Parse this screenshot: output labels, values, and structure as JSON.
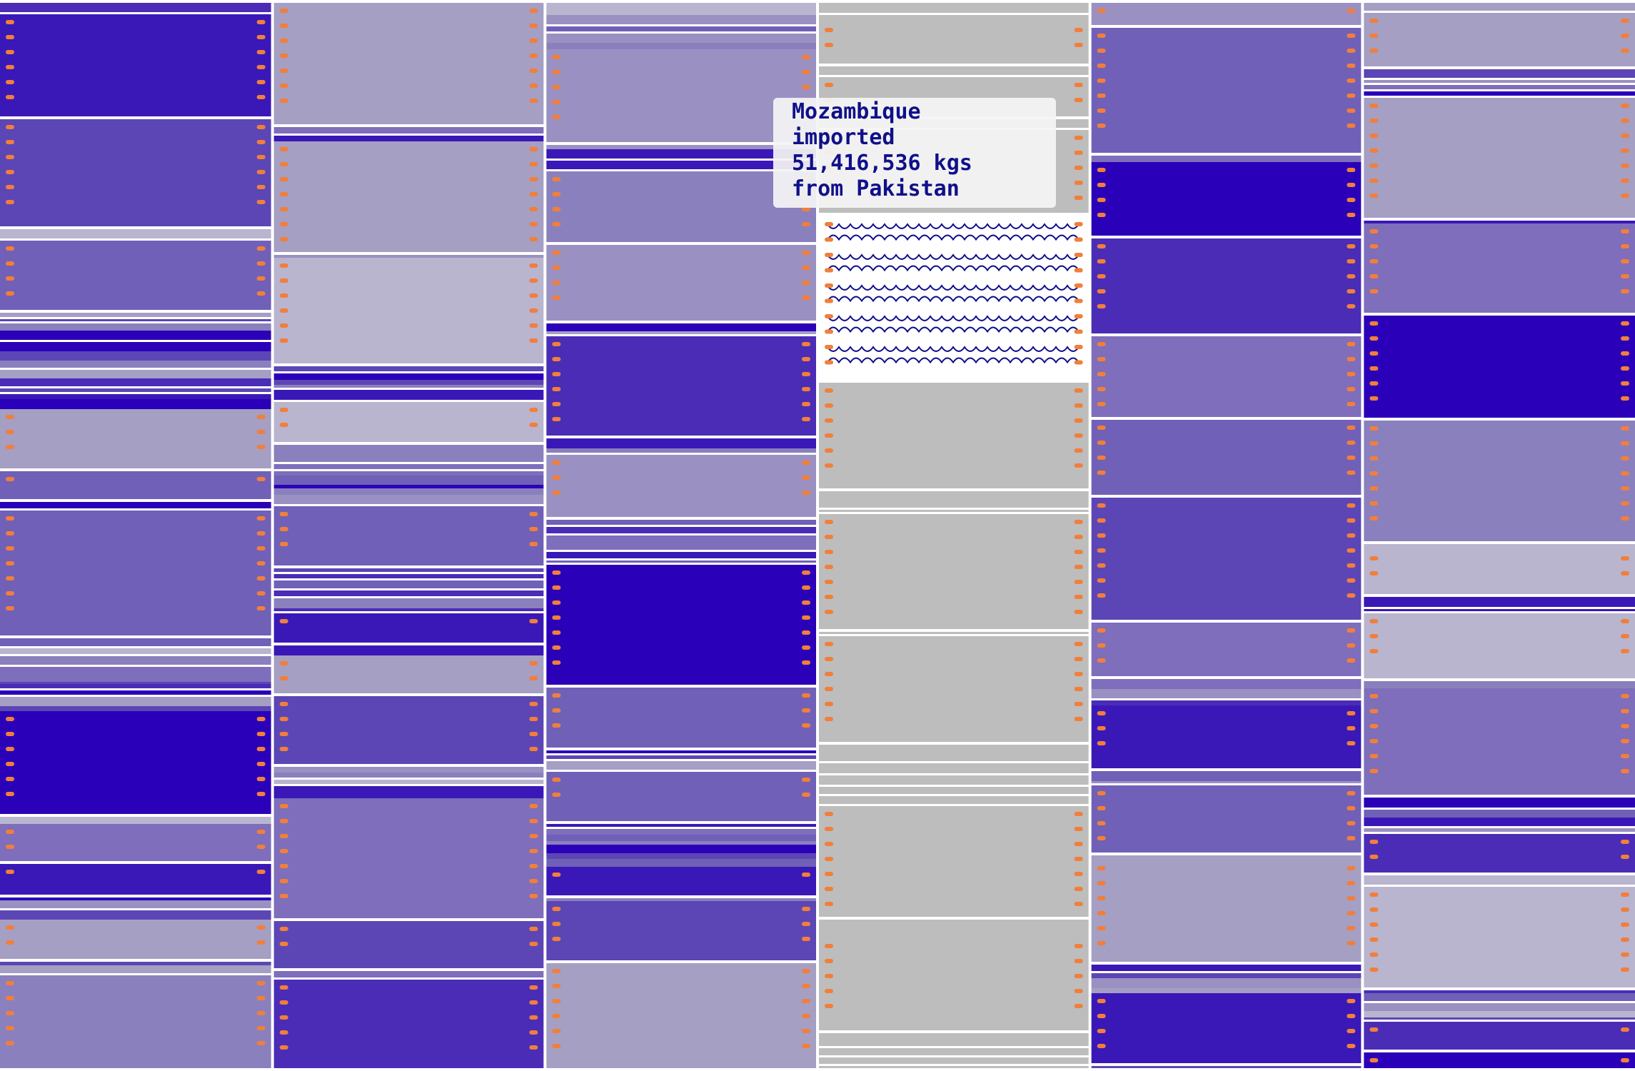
{
  "tooltip": {
    "line1": "Mozambique",
    "line2": "imported",
    "line3": "51,416,536 kgs",
    "line4": "from Pakistan"
  },
  "colors": {
    "background": "#ffffff",
    "separator": "#ffffff",
    "handle": "#f07f3c",
    "highlight_fill": "#ffffff",
    "highlight_wave": "#0b0b8a",
    "dimmed": "#bdbdbd",
    "tooltip_bg": "#f4f4f4",
    "tooltip_text": "#10108a",
    "shades": [
      "#2a00b8",
      "#3a18b8",
      "#4a2cb6",
      "#5c46b5",
      "#7060b8",
      "#7e6ebb",
      "#8a80be",
      "#9a90c2",
      "#a59fc4",
      "#b9b5cf"
    ]
  },
  "columns": [
    {
      "name": "column-1",
      "dimmed": false,
      "highlight": false,
      "seed": 11
    },
    {
      "name": "column-2",
      "dimmed": false,
      "highlight": false,
      "seed": 23
    },
    {
      "name": "column-3",
      "dimmed": false,
      "highlight": false,
      "seed": 37
    },
    {
      "name": "column-4",
      "dimmed": true,
      "highlight": true,
      "seed": 41
    },
    {
      "name": "column-5",
      "dimmed": false,
      "highlight": false,
      "seed": 53
    },
    {
      "name": "column-6",
      "dimmed": false,
      "highlight": false,
      "seed": 67
    }
  ]
}
